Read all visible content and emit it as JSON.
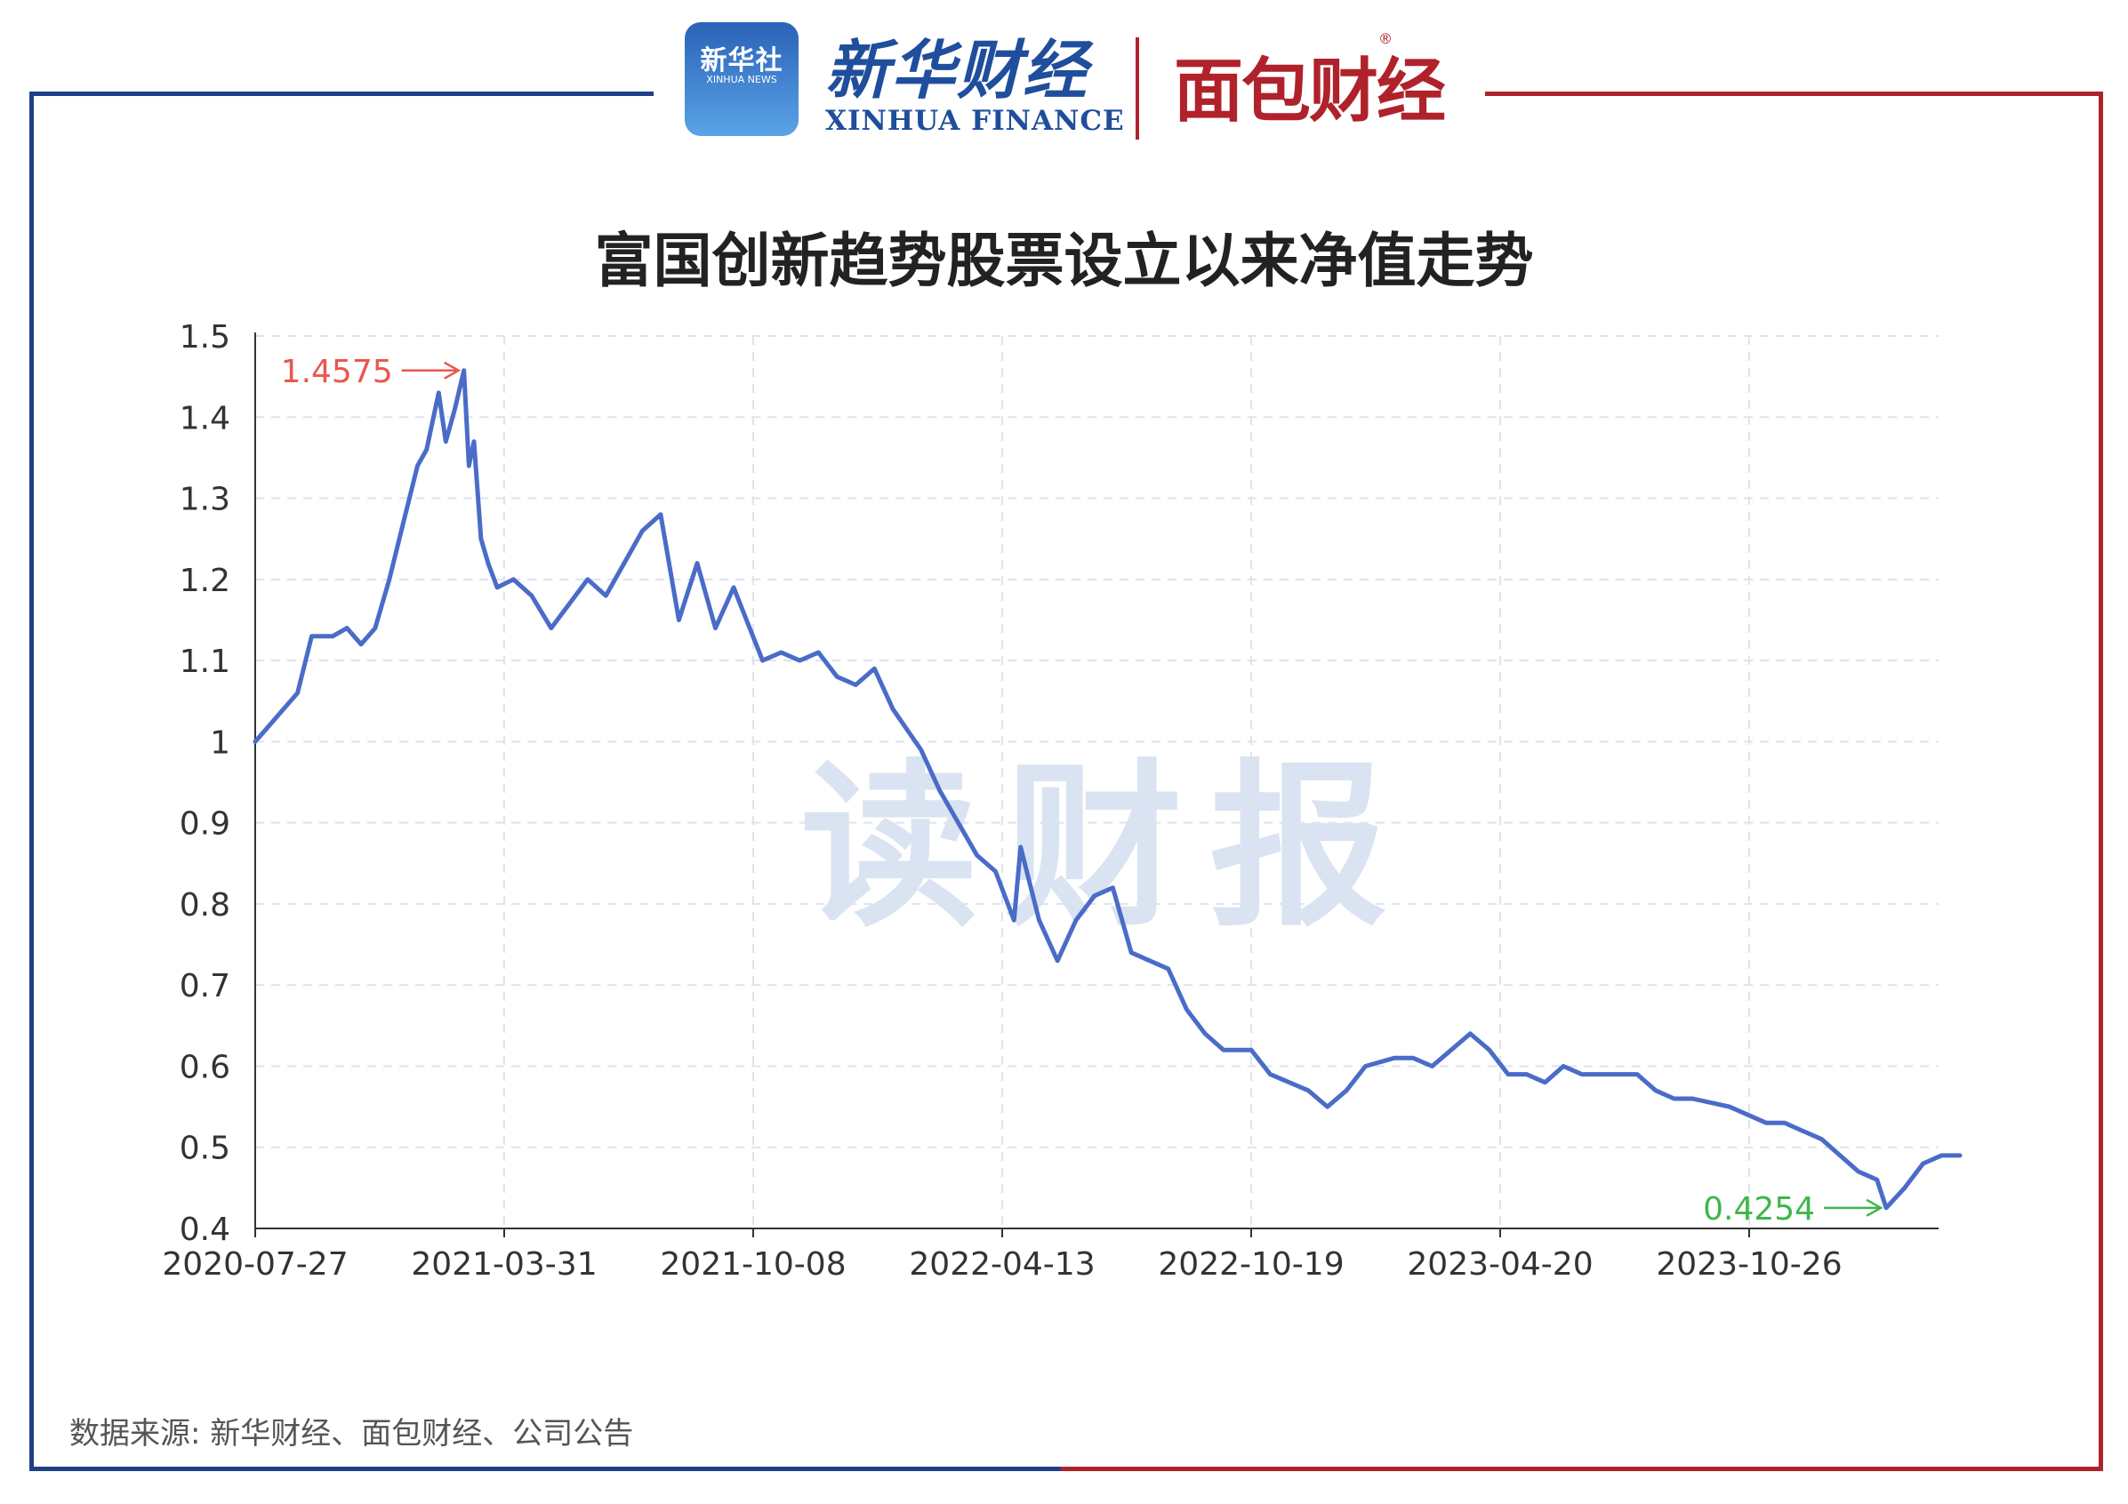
{
  "branding": {
    "xinhua_badge": "新华社",
    "xinhua_badge_sub": "XINHUA NEWS",
    "xinhua_finance_cn": "新华财经",
    "xinhua_finance_en": "XINHUA FINANCE",
    "mianbao": "面包财经",
    "registered": "®",
    "frame_colors": {
      "left": "#1f3f86",
      "right": "#b0222b"
    }
  },
  "watermark": "读财报",
  "source": "数据来源: 新华财经、面包财经、公司公告",
  "chart_data": {
    "type": "line",
    "title": "富国创新趋势股票设立以来净值走势",
    "xlabel": "",
    "ylabel": "",
    "ylim": [
      0.4,
      1.5
    ],
    "yticks": [
      "0.4",
      "0.5",
      "0.6",
      "0.7",
      "0.8",
      "0.9",
      "1",
      "1.1",
      "1.2",
      "1.3",
      "1.4",
      "1.5"
    ],
    "xticks": [
      "2020-07-27",
      "2021-03-31",
      "2021-10-08",
      "2022-04-13",
      "2022-10-19",
      "2023-04-20",
      "2023-10-26"
    ],
    "grid": true,
    "line_color": "#4a6cc8",
    "series": [
      {
        "x": [
          "2020-07-27",
          "2020-08-10",
          "2020-08-24",
          "2020-09-07",
          "2020-09-21",
          "2020-10-12",
          "2020-10-26",
          "2020-11-09",
          "2020-11-23",
          "2020-12-07",
          "2020-12-21",
          "2021-01-04",
          "2021-01-13",
          "2021-01-25",
          "2021-02-01",
          "2021-02-10",
          "2021-02-19",
          "2021-02-24",
          "2021-03-01",
          "2021-03-08",
          "2021-03-15",
          "2021-03-24",
          "2021-04-07",
          "2021-04-21",
          "2021-05-06",
          "2021-05-20",
          "2021-06-03",
          "2021-06-17",
          "2021-07-01",
          "2021-07-15",
          "2021-07-29",
          "2021-08-12",
          "2021-08-26",
          "2021-09-09",
          "2021-09-23",
          "2021-10-15",
          "2021-10-29",
          "2021-11-12",
          "2021-11-26",
          "2021-12-10",
          "2021-12-24",
          "2022-01-07",
          "2022-01-21",
          "2022-02-11",
          "2022-02-25",
          "2022-03-11",
          "2022-03-25",
          "2022-04-08",
          "2022-04-22",
          "2022-04-27",
          "2022-05-11",
          "2022-05-25",
          "2022-06-08",
          "2022-06-22",
          "2022-07-06",
          "2022-07-20",
          "2022-08-03",
          "2022-08-17",
          "2022-08-31",
          "2022-09-14",
          "2022-09-28",
          "2022-10-19",
          "2022-11-02",
          "2022-11-16",
          "2022-11-30",
          "2022-12-14",
          "2022-12-28",
          "2023-01-11",
          "2023-02-01",
          "2023-02-15",
          "2023-03-01",
          "2023-03-15",
          "2023-03-29",
          "2023-04-12",
          "2023-04-26",
          "2023-05-10",
          "2023-05-24",
          "2023-06-07",
          "2023-06-21",
          "2023-07-05",
          "2023-07-19",
          "2023-08-02",
          "2023-08-16",
          "2023-08-30",
          "2023-09-13",
          "2023-10-11",
          "2023-10-25",
          "2023-11-08",
          "2023-11-22",
          "2023-12-06",
          "2023-12-20",
          "2024-01-03",
          "2024-01-17",
          "2024-01-31",
          "2024-02-07",
          "2024-02-21",
          "2024-03-06",
          "2024-03-20",
          "2024-04-03"
        ],
        "values": [
          1.0,
          1.02,
          1.04,
          1.06,
          1.13,
          1.13,
          1.14,
          1.12,
          1.14,
          1.2,
          1.27,
          1.34,
          1.36,
          1.43,
          1.37,
          1.41,
          1.4575,
          1.34,
          1.37,
          1.25,
          1.22,
          1.19,
          1.2,
          1.18,
          1.14,
          1.17,
          1.2,
          1.18,
          1.22,
          1.26,
          1.28,
          1.15,
          1.22,
          1.14,
          1.19,
          1.1,
          1.11,
          1.1,
          1.11,
          1.08,
          1.07,
          1.09,
          1.04,
          0.99,
          0.94,
          0.9,
          0.86,
          0.84,
          0.78,
          0.87,
          0.78,
          0.73,
          0.78,
          0.81,
          0.82,
          0.74,
          0.73,
          0.72,
          0.67,
          0.64,
          0.62,
          0.62,
          0.59,
          0.58,
          0.57,
          0.55,
          0.57,
          0.6,
          0.61,
          0.61,
          0.6,
          0.62,
          0.64,
          0.62,
          0.59,
          0.59,
          0.58,
          0.6,
          0.59,
          0.59,
          0.59,
          0.59,
          0.57,
          0.56,
          0.56,
          0.55,
          0.54,
          0.53,
          0.53,
          0.52,
          0.51,
          0.49,
          0.47,
          0.46,
          0.4254,
          0.45,
          0.48,
          0.49,
          0.49
        ]
      }
    ],
    "annotations": [
      {
        "label": "1.4575",
        "x": "2021-02-19",
        "y": 1.4575,
        "color": "#e8574f",
        "type": "max"
      },
      {
        "label": "0.4254",
        "x": "2024-02-07",
        "y": 0.4254,
        "color": "#3fb64a",
        "type": "min"
      }
    ]
  }
}
